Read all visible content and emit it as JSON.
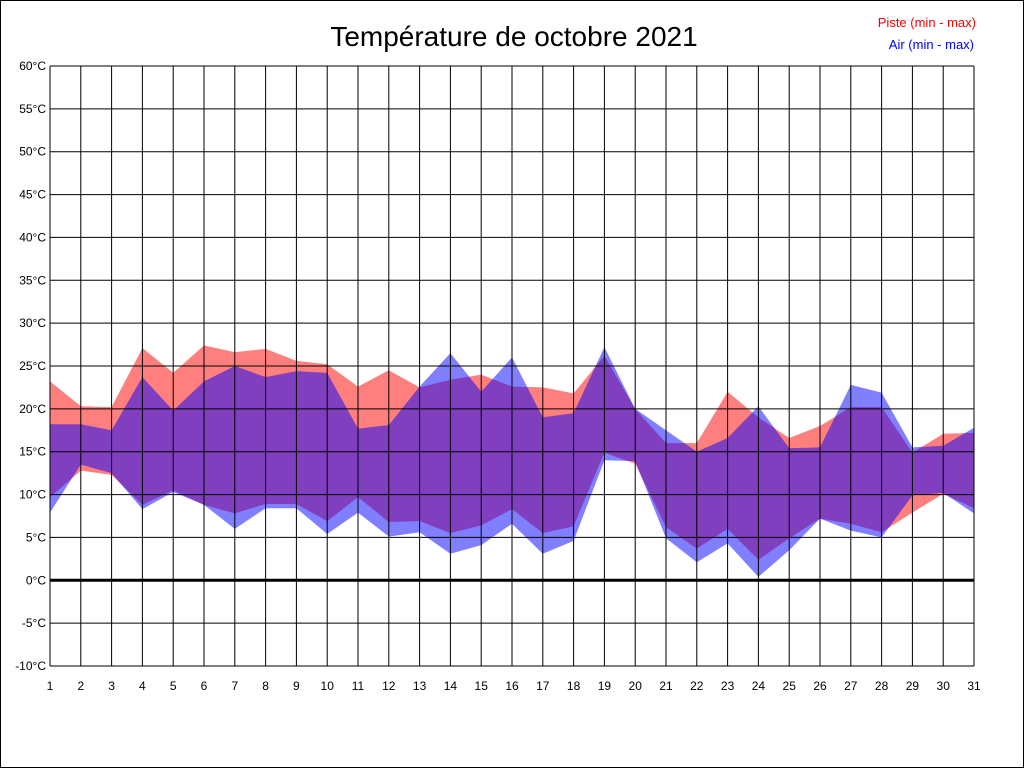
{
  "chart_data": {
    "type": "area",
    "title": "Température de octobre 2021",
    "xlabel": "",
    "ylabel": "",
    "x": [
      1,
      2,
      3,
      4,
      5,
      6,
      7,
      8,
      9,
      10,
      11,
      12,
      13,
      14,
      15,
      16,
      17,
      18,
      19,
      20,
      21,
      22,
      23,
      24,
      25,
      26,
      27,
      28,
      29,
      30,
      31
    ],
    "xlim": [
      1,
      31
    ],
    "ylim": [
      -10,
      60
    ],
    "y_ticks": [
      -10,
      -5,
      0,
      5,
      10,
      15,
      20,
      25,
      30,
      35,
      40,
      45,
      50,
      55,
      60
    ],
    "y_tick_unit": "°C",
    "grid": true,
    "legend_position": "top-right",
    "series": [
      {
        "name": "Piste (min - max)",
        "color": "#ff0000",
        "min": [
          9.7,
          12.8,
          12.3,
          8.8,
          10.5,
          8.8,
          7.8,
          8.9,
          8.9,
          6.9,
          9.7,
          6.8,
          6.9,
          5.5,
          6.4,
          8.3,
          5.5,
          6.3,
          14.9,
          13.6,
          6.2,
          3.7,
          6.0,
          2.4,
          4.9,
          7.2,
          6.6,
          5.6,
          7.9,
          10.1,
          8.4
        ],
        "max": [
          23.2,
          20.3,
          20.2,
          27.1,
          24.2,
          27.4,
          26.6,
          27.0,
          25.6,
          25.2,
          22.6,
          24.5,
          22.5,
          23.4,
          24.0,
          22.6,
          22.5,
          21.8,
          26.2,
          20.0,
          16.0,
          16.0,
          22.0,
          19.0,
          16.6,
          18.0,
          20.2,
          20.2,
          14.9,
          17.1,
          17.2
        ]
      },
      {
        "name": "Air (min - max)",
        "color": "#0000ff",
        "min": [
          7.9,
          13.5,
          12.5,
          8.3,
          10.3,
          8.8,
          6.0,
          8.4,
          8.4,
          5.4,
          7.9,
          5.1,
          5.6,
          3.1,
          4.1,
          6.6,
          3.1,
          4.6,
          14.0,
          13.9,
          4.9,
          2.1,
          4.3,
          0.4,
          3.5,
          7.2,
          5.8,
          5.0,
          9.9,
          10.2,
          7.8
        ],
        "max": [
          18.2,
          18.2,
          17.5,
          23.7,
          19.8,
          23.2,
          25.0,
          23.7,
          24.4,
          24.2,
          17.7,
          18.1,
          22.6,
          26.5,
          22.0,
          26.0,
          19.0,
          19.5,
          27.2,
          20.0,
          17.5,
          15.0,
          16.6,
          20.3,
          15.4,
          15.5,
          22.8,
          21.9,
          15.5,
          15.7,
          17.8
        ]
      }
    ]
  }
}
